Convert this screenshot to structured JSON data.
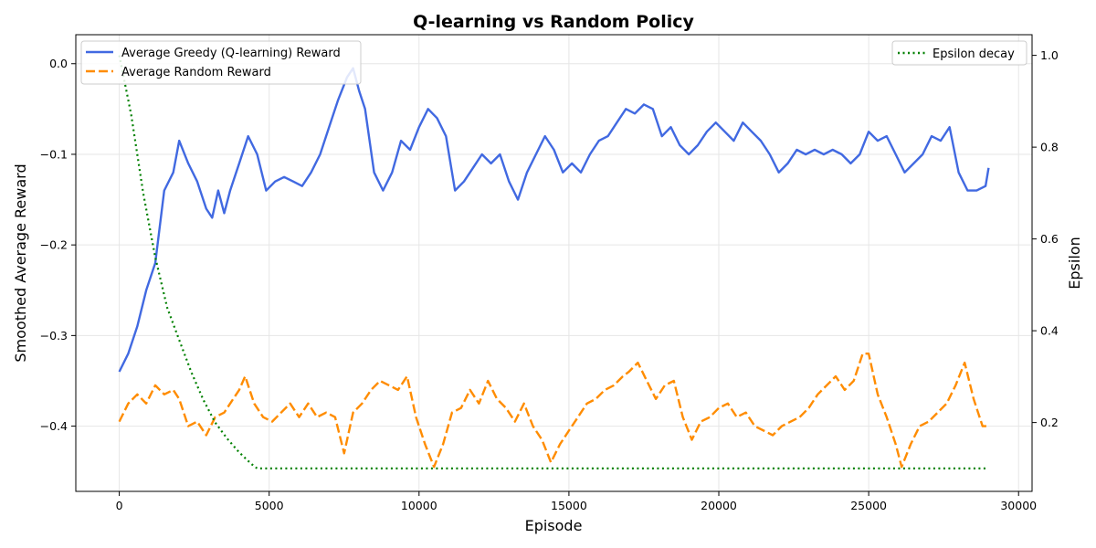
{
  "chart_data": {
    "type": "line",
    "title": "Q-learning vs Random Policy",
    "xlabel": "Episode",
    "ylabel": "Smoothed Average Reward",
    "y2label": "Epsilon",
    "xlim": [
      -1450,
      30450
    ],
    "ylim": [
      -0.472,
      0.032
    ],
    "y2lim": [
      0.05,
      1.045
    ],
    "xticks": [
      0,
      5000,
      10000,
      15000,
      20000,
      25000,
      30000
    ],
    "yticks": [
      0.0,
      -0.1,
      -0.2,
      -0.3,
      -0.4
    ],
    "y2ticks": [
      0.2,
      0.4,
      0.6,
      0.8,
      1.0
    ],
    "grid": true,
    "series": [
      {
        "name": "Average Greedy (Q-learning) Reward",
        "axis": "left",
        "color": "#4169E1",
        "style": "solid",
        "x": [
          0,
          300,
          600,
          900,
          1200,
          1500,
          1800,
          2000,
          2300,
          2600,
          2900,
          3100,
          3300,
          3500,
          3700,
          4000,
          4300,
          4600,
          4900,
          5200,
          5500,
          5800,
          6100,
          6400,
          6700,
          7000,
          7300,
          7600,
          7800,
          8000,
          8200,
          8500,
          8800,
          9100,
          9400,
          9700,
          10000,
          10300,
          10600,
          10900,
          11200,
          11500,
          11800,
          12100,
          12400,
          12700,
          13000,
          13300,
          13600,
          13900,
          14200,
          14500,
          14800,
          15100,
          15400,
          15700,
          16000,
          16300,
          16600,
          16900,
          17200,
          17500,
          17800,
          18100,
          18400,
          18700,
          19000,
          19300,
          19600,
          19900,
          20200,
          20500,
          20800,
          21100,
          21400,
          21700,
          22000,
          22300,
          22600,
          22900,
          23200,
          23500,
          23800,
          24100,
          24400,
          24700,
          25000,
          25300,
          25600,
          25900,
          26200,
          26500,
          26800,
          27100,
          27400,
          27700,
          28000,
          28300,
          28600,
          28900,
          29000
        ],
        "y": [
          -0.34,
          -0.32,
          -0.29,
          -0.25,
          -0.22,
          -0.14,
          -0.12,
          -0.085,
          -0.11,
          -0.13,
          -0.16,
          -0.17,
          -0.14,
          -0.165,
          -0.14,
          -0.11,
          -0.08,
          -0.1,
          -0.14,
          -0.13,
          -0.125,
          -0.13,
          -0.135,
          -0.12,
          -0.1,
          -0.07,
          -0.04,
          -0.015,
          -0.005,
          -0.03,
          -0.05,
          -0.12,
          -0.14,
          -0.12,
          -0.085,
          -0.095,
          -0.07,
          -0.05,
          -0.06,
          -0.08,
          -0.14,
          -0.13,
          -0.115,
          -0.1,
          -0.11,
          -0.1,
          -0.13,
          -0.15,
          -0.12,
          -0.1,
          -0.08,
          -0.095,
          -0.12,
          -0.11,
          -0.12,
          -0.1,
          -0.085,
          -0.08,
          -0.065,
          -0.05,
          -0.055,
          -0.045,
          -0.05,
          -0.08,
          -0.07,
          -0.09,
          -0.1,
          -0.09,
          -0.075,
          -0.065,
          -0.075,
          -0.085,
          -0.065,
          -0.075,
          -0.085,
          -0.1,
          -0.12,
          -0.11,
          -0.095,
          -0.1,
          -0.095,
          -0.1,
          -0.095,
          -0.1,
          -0.11,
          -0.1,
          -0.075,
          -0.085,
          -0.08,
          -0.1,
          -0.12,
          -0.11,
          -0.1,
          -0.08,
          -0.085,
          -0.07,
          -0.12,
          -0.14,
          -0.14,
          -0.135,
          -0.115
        ]
      },
      {
        "name": "Average Random Reward",
        "axis": "left",
        "color": "#FF8C00",
        "style": "dashed",
        "x": [
          0,
          300,
          600,
          900,
          1200,
          1500,
          1800,
          2000,
          2300,
          2600,
          2900,
          3200,
          3500,
          3800,
          4000,
          4200,
          4500,
          4800,
          5100,
          5400,
          5700,
          6000,
          6300,
          6600,
          6900,
          7200,
          7500,
          7800,
          8100,
          8400,
          8700,
          9000,
          9300,
          9600,
          9900,
          10200,
          10500,
          10800,
          11100,
          11400,
          11700,
          12000,
          12300,
          12600,
          12900,
          13200,
          13500,
          13800,
          14100,
          14400,
          14700,
          15000,
          15300,
          15600,
          15900,
          16200,
          16500,
          16800,
          17000,
          17300,
          17600,
          17900,
          18200,
          18500,
          18800,
          19100,
          19400,
          19700,
          20000,
          20300,
          20600,
          20900,
          21200,
          21500,
          21800,
          22100,
          22400,
          22700,
          23000,
          23300,
          23600,
          23900,
          24200,
          24500,
          24800,
          25000,
          25300,
          25600,
          25900,
          26100,
          26400,
          26700,
          27000,
          27300,
          27600,
          27900,
          28200,
          28500,
          28800,
          29000
        ],
        "y": [
          -0.395,
          -0.375,
          -0.365,
          -0.375,
          -0.355,
          -0.365,
          -0.36,
          -0.37,
          -0.4,
          -0.395,
          -0.41,
          -0.39,
          -0.385,
          -0.37,
          -0.36,
          -0.345,
          -0.375,
          -0.39,
          -0.395,
          -0.385,
          -0.375,
          -0.39,
          -0.375,
          -0.39,
          -0.385,
          -0.39,
          -0.43,
          -0.385,
          -0.375,
          -0.36,
          -0.35,
          -0.355,
          -0.36,
          -0.345,
          -0.39,
          -0.42,
          -0.445,
          -0.42,
          -0.385,
          -0.38,
          -0.36,
          -0.375,
          -0.35,
          -0.37,
          -0.38,
          -0.395,
          -0.375,
          -0.4,
          -0.415,
          -0.44,
          -0.42,
          -0.405,
          -0.39,
          -0.375,
          -0.37,
          -0.36,
          -0.355,
          -0.345,
          -0.34,
          -0.33,
          -0.35,
          -0.37,
          -0.355,
          -0.35,
          -0.39,
          -0.415,
          -0.395,
          -0.39,
          -0.38,
          -0.375,
          -0.39,
          -0.385,
          -0.4,
          -0.405,
          -0.41,
          -0.4,
          -0.395,
          -0.39,
          -0.38,
          -0.365,
          -0.355,
          -0.345,
          -0.36,
          -0.35,
          -0.32,
          -0.32,
          -0.365,
          -0.39,
          -0.42,
          -0.445,
          -0.42,
          -0.4,
          -0.395,
          -0.385,
          -0.375,
          -0.355,
          -0.33,
          -0.37,
          -0.4,
          -0.4
        ]
      },
      {
        "name": "Epsilon decay",
        "axis": "right",
        "color": "#008000",
        "style": "dotted",
        "x": [
          0,
          400,
          800,
          1200,
          1600,
          2000,
          2400,
          2800,
          3200,
          3600,
          4000,
          4400,
          4600,
          5000,
          10000,
          15000,
          20000,
          25000,
          29000
        ],
        "y": [
          1.0,
          0.87,
          0.7,
          0.56,
          0.45,
          0.38,
          0.31,
          0.25,
          0.2,
          0.165,
          0.135,
          0.11,
          0.1,
          0.1,
          0.1,
          0.1,
          0.1,
          0.1,
          0.1
        ]
      }
    ],
    "legend_left": "upper-left",
    "legend_right": "upper-right"
  }
}
